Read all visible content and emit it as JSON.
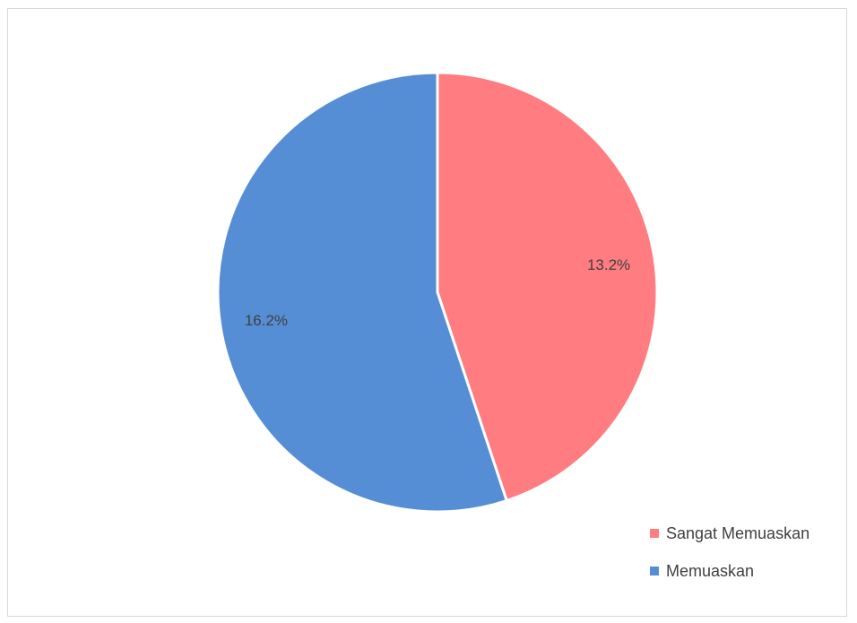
{
  "chart_data": {
    "type": "pie",
    "title": "",
    "categories": [
      "Sangat Memuaskan",
      "Memuaskan"
    ],
    "values": [
      13.2,
      16.2
    ],
    "value_labels": [
      "13.2%",
      "16.2%"
    ],
    "colors": [
      "#ff7c80",
      "#558ed5"
    ],
    "legend_position": "bottom-right",
    "start_angle_deg": 0,
    "direction": "clockwise"
  },
  "legend": {
    "items": [
      {
        "label": "Sangat Memuaskan",
        "color": "#ff7c80"
      },
      {
        "label": "Memuaskan",
        "color": "#558ed5"
      }
    ]
  }
}
